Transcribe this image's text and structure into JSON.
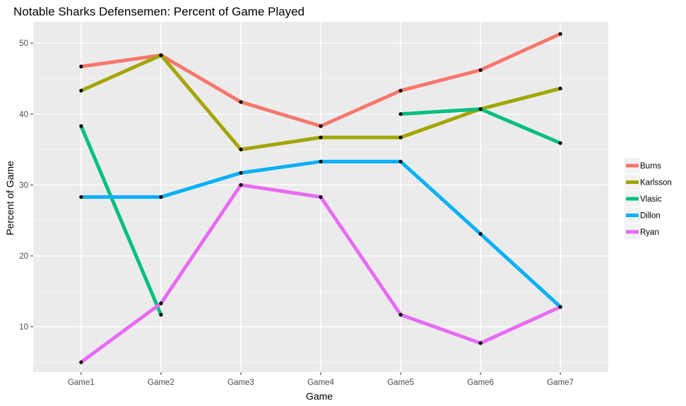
{
  "chart_data": {
    "type": "line",
    "title": "Notable Sharks Defensemen: Percent of Game Played",
    "xlabel": "Game",
    "ylabel": "Percent of Game",
    "categories": [
      "Game1",
      "Game2",
      "Game3",
      "Game4",
      "Game5",
      "Game6",
      "Game7"
    ],
    "ylim": [
      3.6,
      53.0
    ],
    "yticks": [
      10,
      20,
      30,
      40,
      50
    ],
    "grid": true,
    "legend_position": "right",
    "series": [
      {
        "name": "Burns",
        "color": "#f8766d",
        "values": [
          46.7,
          48.3,
          41.7,
          38.3,
          43.3,
          46.2,
          51.3
        ]
      },
      {
        "name": "Karlsson",
        "color": "#a3a500",
        "values": [
          43.3,
          48.3,
          35.0,
          36.7,
          36.7,
          40.7,
          43.6
        ]
      },
      {
        "name": "Vlasic",
        "color": "#00bf7d",
        "values": [
          38.3,
          11.7,
          null,
          null,
          40.0,
          40.7,
          35.9
        ]
      },
      {
        "name": "Dillon",
        "color": "#00b0f6",
        "values": [
          28.3,
          28.3,
          31.7,
          33.3,
          33.3,
          23.1,
          12.8
        ]
      },
      {
        "name": "Ryan",
        "color": "#e76bf3",
        "values": [
          5.0,
          13.3,
          30.0,
          28.3,
          11.7,
          7.7,
          12.8
        ]
      }
    ]
  }
}
